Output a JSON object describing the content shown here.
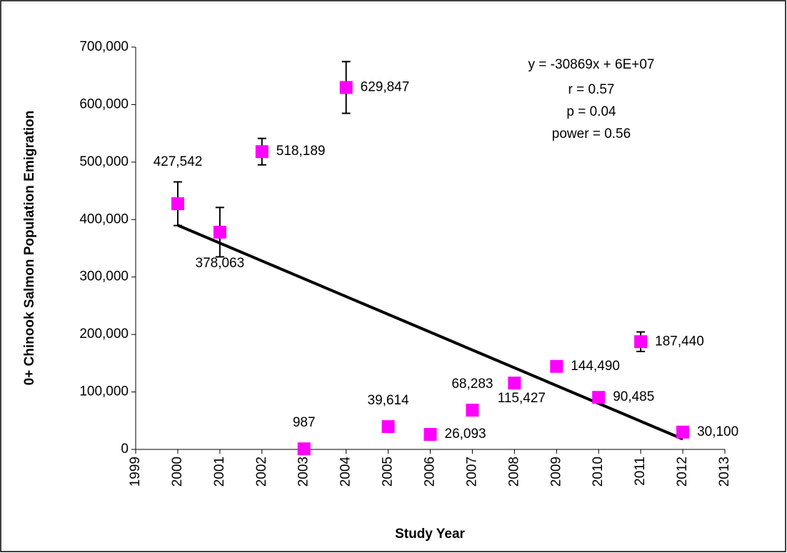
{
  "chart_data": {
    "type": "scatter",
    "x_label": "Study Year",
    "y_label": "0+ Chinook Salmon Population Emigration",
    "x": [
      2000,
      2001,
      2002,
      2003,
      2004,
      2005,
      2006,
      2007,
      2008,
      2009,
      2010,
      2011,
      2012
    ],
    "series": [
      {
        "name": "0+ Chinook Salmon Population Emigration",
        "color": "#ff00ff",
        "values": [
          427542,
          378063,
          518189,
          987,
          629847,
          39614,
          26093,
          68283,
          115427,
          144490,
          90485,
          187440,
          30100
        ],
        "value_labels": [
          "427,542",
          "378,063",
          "518,189",
          "987",
          "629,847",
          "39,614",
          "26,093",
          "68,283",
          "115,427",
          "144,490",
          "90,485",
          "187,440",
          "30,100"
        ],
        "errors": [
          38000,
          43000,
          23000,
          null,
          45000,
          null,
          null,
          null,
          null,
          null,
          null,
          17000,
          null
        ]
      }
    ],
    "trendline": {
      "x": [
        2000,
        2012
      ],
      "values": [
        390000,
        18000
      ],
      "color": "#000000"
    },
    "annotations": [
      "y = -30869x + 6E+07",
      "r = 0.57",
      "p = 0.04",
      "power = 0.56"
    ],
    "xlim": [
      1999,
      2013
    ],
    "xticks": [
      1999,
      2000,
      2001,
      2002,
      2003,
      2004,
      2005,
      2006,
      2007,
      2008,
      2009,
      2010,
      2011,
      2012,
      2013
    ],
    "ylim": [
      0,
      700000
    ],
    "yticks": [
      0,
      {
        "value": 100000,
        "label": "100,000"
      },
      {
        "value": 200000,
        "label": "200,000"
      },
      {
        "value": 300000,
        "label": "300,000"
      },
      {
        "value": 400000,
        "label": "400,000"
      },
      {
        "value": 500000,
        "label": "500,000"
      },
      {
        "value": 600000,
        "label": "600,000"
      },
      {
        "value": 700000,
        "label": "700,000"
      }
    ]
  }
}
